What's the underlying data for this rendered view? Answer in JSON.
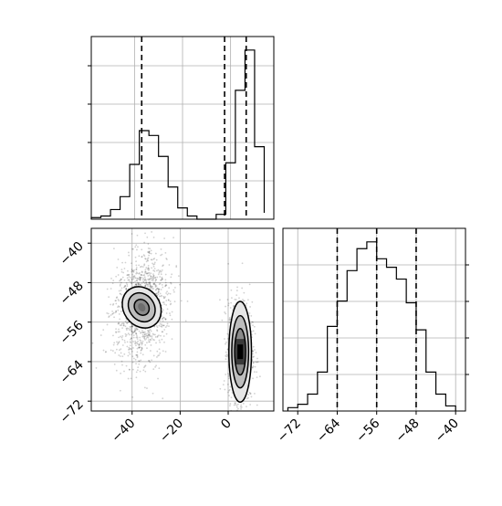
{
  "chart_data": [
    {
      "type": "histogram",
      "panel": "top-left marginal",
      "x_range": [
        -58,
        18
      ],
      "bin_edges": [
        -58,
        -54,
        -50,
        -46,
        -42,
        -38,
        -34,
        -30,
        -26,
        -22,
        -18,
        -14,
        -10,
        -6,
        -2,
        2,
        6,
        10,
        14
      ],
      "counts": [
        1,
        2,
        6,
        14,
        34,
        55,
        52,
        39,
        20,
        7,
        2,
        0,
        0,
        3,
        35,
        80,
        105,
        45,
        4
      ],
      "quantile_lines": [
        -37,
        -2.5,
        6.5
      ],
      "grid": true
    },
    {
      "type": "histogram",
      "panel": "bottom-right marginal",
      "x_range": [
        -75,
        -38
      ],
      "x_ticks": [
        -72,
        -64,
        -56,
        -48,
        -40
      ],
      "x_tick_labels": [
        "−72",
        "−64",
        "−56",
        "−48",
        "−40"
      ],
      "bin_edges": [
        -74,
        -72,
        -70,
        -68,
        -66,
        -64,
        -62,
        -60,
        -58,
        -56,
        -54,
        -52,
        -50,
        -48,
        -46,
        -44,
        -42,
        -40
      ],
      "counts": [
        2,
        4,
        10,
        23,
        50,
        65,
        83,
        96,
        100,
        90,
        85,
        78,
        64,
        48,
        23,
        10,
        3
      ],
      "quantile_lines": [
        -64,
        -56,
        -48
      ],
      "grid": true
    },
    {
      "type": "2d-density",
      "panel": "bottom-left joint",
      "x_range": [
        -57,
        19
      ],
      "y_range": [
        -74,
        -37
      ],
      "x_ticks": [
        -40,
        -20,
        0
      ],
      "x_tick_labels": [
        "−40",
        "−20",
        "0"
      ],
      "y_ticks": [
        -40,
        -48,
        -56,
        -64,
        -72
      ],
      "y_tick_labels": [
        "−40",
        "−48",
        "−56",
        "−64",
        "−72"
      ],
      "clusters": [
        {
          "center": [
            -36,
            -53
          ],
          "sigma": [
            6,
            5
          ],
          "angle_deg": 35,
          "contours": [
            [
              7.6,
              4.4
            ],
            [
              5.2,
              3.1
            ],
            [
              2.9,
              1.7
            ]
          ]
        },
        {
          "center": [
            5,
            -62
          ],
          "sigma": [
            2.5,
            5
          ],
          "angle_deg": 0,
          "contours": [
            [
              4.7,
              10.2
            ],
            [
              3.5,
              7.3
            ],
            [
              2.3,
              4.7
            ]
          ]
        }
      ],
      "grid": true
    }
  ]
}
